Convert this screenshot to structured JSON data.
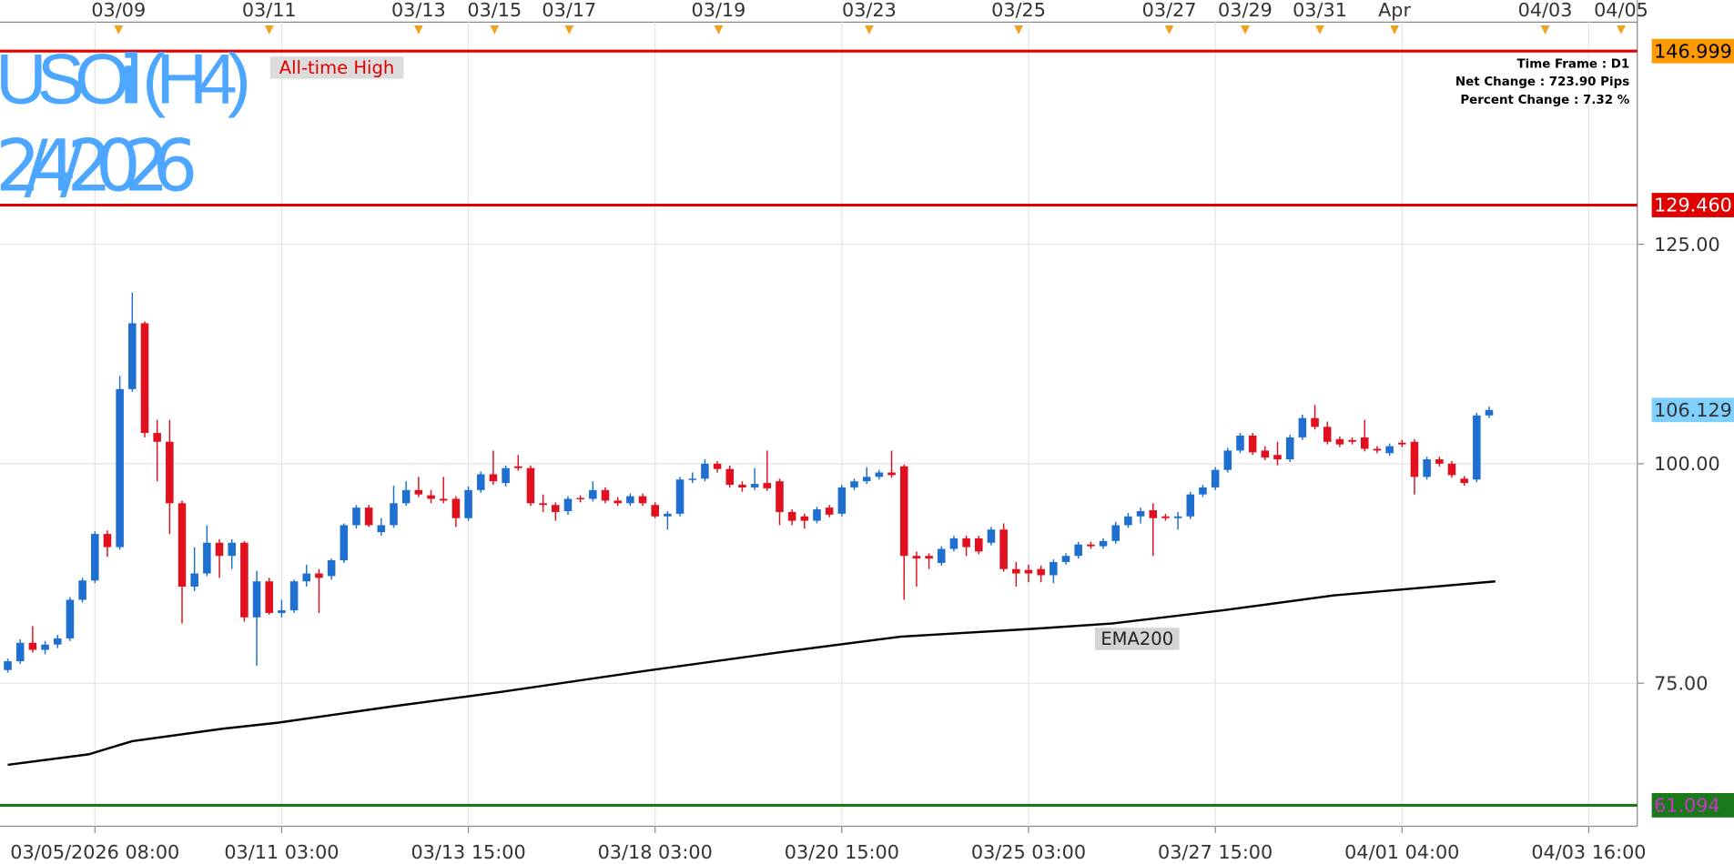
{
  "chart_data": {
    "type": "candlestick",
    "title": "USOil (H4)",
    "subtitle": "2/4/2026",
    "annotation": "All-time High",
    "info": [
      "Time Frame : D1",
      "Net Change : 723.90 Pips",
      "Percent Change : 7.32 %"
    ],
    "up_color": "#1e6fd0",
    "down_color": "#e0101e",
    "xlim": [
      -0.625,
      130.9
    ],
    "ylim": [
      58.7,
      148.4
    ],
    "yticks": [
      {
        "value": 75,
        "label": "75.00"
      },
      {
        "value": 100,
        "label": "100.00"
      },
      {
        "value": 125,
        "label": "125.00"
      }
    ],
    "grid": true,
    "xticks": [
      {
        "value": 7,
        "label": "03/05/2026 08:00"
      },
      {
        "value": 22,
        "label": "03/11 03:00"
      },
      {
        "value": 37,
        "label": "03/13 15:00"
      },
      {
        "value": 52,
        "label": "03/18 03:00"
      },
      {
        "value": 67,
        "label": "03/20 15:00"
      },
      {
        "value": 82,
        "label": "03/25 03:00"
      },
      {
        "value": 97,
        "label": "03/27 15:00"
      },
      {
        "value": 112,
        "label": "04/01 04:00"
      },
      {
        "value": 127,
        "label": "04/03 16:00"
      }
    ],
    "events": [
      {
        "value": 8.9,
        "label": "03/09"
      },
      {
        "value": 21,
        "label": "03/11"
      },
      {
        "value": 33,
        "label": "03/13"
      },
      {
        "value": 39.1,
        "label": "03/15"
      },
      {
        "value": 45.1,
        "label": "03/17"
      },
      {
        "value": 57.1,
        "label": "03/19"
      },
      {
        "value": 69.2,
        "label": "03/23"
      },
      {
        "value": 81.2,
        "label": "03/25"
      },
      {
        "value": 93.3,
        "label": "03/27"
      },
      {
        "value": 99.4,
        "label": "03/29"
      },
      {
        "value": 105.4,
        "label": "03/31"
      },
      {
        "value": 111.4,
        "label": "Apr"
      },
      {
        "value": 123.5,
        "label": "04/03"
      },
      {
        "value": 129.6,
        "label": "04/05"
      }
    ],
    "levels": [
      {
        "value": 146.999,
        "label": "146.999",
        "color": "#e00000",
        "label_bg": "#ff9900",
        "text_color": "#000000"
      },
      {
        "value": 129.46,
        "label": "129.460",
        "color": "#e00000",
        "label_bg": "#e00000",
        "text_color": "#ffffff"
      },
      {
        "value": 61.094,
        "label": "61.094",
        "color": "#1a7a1a",
        "label_bg": "#1a7a1a",
        "text_color": "#cc33cc"
      }
    ],
    "last_price": 106.129,
    "last_price_bg": "#7fd0ff",
    "ema": {
      "name": "EMA200",
      "color": "#000000",
      "x": [
        0,
        6.5,
        10,
        17.2,
        21.7,
        30.6,
        39.6,
        51.2,
        61.9,
        71.7,
        82.4,
        88.7,
        97.6,
        106.5,
        119.5
      ],
      "values": [
        65.7,
        66.9,
        68.4,
        69.8,
        70.5,
        72.3,
        74.0,
        76.4,
        78.5,
        80.3,
        81.2,
        81.8,
        83.3,
        85.0,
        86.6
      ]
    },
    "ohlc": [
      [
        76.5,
        77.8,
        76.2,
        77.5
      ],
      [
        77.5,
        80,
        77.2,
        79.6
      ],
      [
        79.6,
        81.5,
        78.5,
        78.8
      ],
      [
        78.8,
        79.8,
        78.3,
        79.4
      ],
      [
        79.4,
        80.5,
        79,
        80.1
      ],
      [
        80.1,
        84.8,
        79.8,
        84.5
      ],
      [
        84.5,
        87,
        84.2,
        86.7
      ],
      [
        86.7,
        92.3,
        86.4,
        92
      ],
      [
        92,
        92.4,
        89.4,
        90.5
      ],
      [
        90.5,
        110,
        90.2,
        108.5
      ],
      [
        108.5,
        119.5,
        108.2,
        116
      ],
      [
        116,
        116.2,
        103,
        103.5
      ],
      [
        103.5,
        105,
        98,
        102.5
      ],
      [
        102.5,
        105,
        92,
        95.5
      ],
      [
        95.5,
        95.8,
        81.8,
        86
      ],
      [
        86,
        90.5,
        85.5,
        87.5
      ],
      [
        87.5,
        93,
        87.2,
        91
      ],
      [
        91,
        91.4,
        87,
        89.5
      ],
      [
        89.5,
        91.4,
        88,
        91
      ],
      [
        91,
        91.2,
        82,
        82.5
      ],
      [
        82.5,
        87.8,
        77,
        86.6
      ],
      [
        86.6,
        87,
        82.8,
        83
      ],
      [
        83,
        84.5,
        82.5,
        83.3
      ],
      [
        83.3,
        86.8,
        83,
        86.6
      ],
      [
        86.6,
        88.5,
        86,
        87.5
      ],
      [
        87.5,
        88,
        83,
        87
      ],
      [
        87.2,
        89.2,
        86.8,
        89
      ],
      [
        89,
        93.2,
        88.7,
        93
      ],
      [
        93,
        95.3,
        92.6,
        95
      ],
      [
        95,
        95.3,
        92.8,
        93
      ],
      [
        92.2,
        93.8,
        91.8,
        93
      ],
      [
        93,
        97.5,
        92.7,
        95.5
      ],
      [
        95.5,
        98,
        95.2,
        97
      ],
      [
        97,
        98.5,
        96.2,
        96.5
      ],
      [
        96.4,
        97,
        95.5,
        96
      ],
      [
        96,
        98.5,
        95.5,
        95.8
      ],
      [
        96,
        96.3,
        92.8,
        93.8
      ],
      [
        93.8,
        97.4,
        93.5,
        97
      ],
      [
        97,
        99.1,
        96.7,
        98.8
      ],
      [
        98.8,
        101.5,
        97.6,
        98
      ],
      [
        97.8,
        99.8,
        97.4,
        99.5
      ],
      [
        99.7,
        101,
        99.2,
        99.5
      ],
      [
        99.5,
        99.8,
        95.2,
        95.5
      ],
      [
        95.5,
        96.5,
        94.5,
        95.3
      ],
      [
        95.3,
        95.6,
        93.5,
        94.5
      ],
      [
        94.6,
        96.3,
        94.2,
        96
      ],
      [
        96.1,
        96.4,
        95.6,
        96
      ],
      [
        96,
        98,
        95.7,
        97
      ],
      [
        97,
        97.3,
        95.5,
        95.8
      ],
      [
        95.8,
        96.2,
        95.2,
        95.5
      ],
      [
        95.5,
        96.6,
        95.2,
        96.3
      ],
      [
        96.3,
        96.6,
        95.2,
        95.5
      ],
      [
        95.3,
        95.6,
        93.8,
        94
      ],
      [
        94,
        94.6,
        92.5,
        94.3
      ],
      [
        94.3,
        98.5,
        94,
        98.2
      ],
      [
        98.2,
        99,
        97.8,
        98.3
      ],
      [
        98.3,
        100.5,
        98,
        100
      ],
      [
        100,
        100.3,
        99,
        99.4
      ],
      [
        99.4,
        99.8,
        97.3,
        97.6
      ],
      [
        97.6,
        98,
        96.8,
        97.3
      ],
      [
        97.3,
        99.5,
        97,
        97.7
      ],
      [
        97.8,
        101.5,
        96.9,
        97.2
      ],
      [
        98,
        98.3,
        93,
        94.5
      ],
      [
        94.5,
        94.8,
        93,
        93.5
      ],
      [
        94,
        94.3,
        92.6,
        93.5
      ],
      [
        93.5,
        95.1,
        93.2,
        94.8
      ],
      [
        95,
        95.3,
        93.9,
        94.2
      ],
      [
        94.3,
        97.6,
        94,
        97.3
      ],
      [
        97.3,
        98.3,
        97,
        98
      ],
      [
        98,
        99.6,
        97.7,
        98.5
      ],
      [
        98.5,
        99.3,
        98.2,
        99
      ],
      [
        99,
        101.5,
        98.4,
        98.7
      ],
      [
        99.7,
        99.9,
        84.5,
        89.5
      ],
      [
        89.5,
        90,
        86,
        89.2
      ],
      [
        89.5,
        89.8,
        88,
        89.2
      ],
      [
        88.7,
        90.6,
        88.4,
        90.3
      ],
      [
        90.3,
        91.8,
        90,
        91.5
      ],
      [
        91.5,
        91.8,
        89.5,
        90.5
      ],
      [
        91.5,
        91.8,
        89.7,
        90
      ],
      [
        91,
        92.8,
        90.7,
        92.5
      ],
      [
        92.5,
        93.2,
        87.7,
        88
      ],
      [
        88,
        88.8,
        86,
        87.5
      ],
      [
        87.9,
        88.5,
        86.5,
        87.5
      ],
      [
        88,
        88.4,
        86.5,
        87.3
      ],
      [
        87.3,
        89.1,
        86.4,
        88.8
      ],
      [
        88.8,
        89.8,
        88.5,
        89.5
      ],
      [
        89.5,
        91.1,
        89.2,
        90.8
      ],
      [
        90.8,
        91.1,
        90.3,
        90.6
      ],
      [
        90.6,
        91.5,
        90.3,
        91.2
      ],
      [
        91.2,
        93.4,
        90.9,
        93
      ],
      [
        93,
        94.4,
        92.7,
        94
      ],
      [
        94,
        95,
        93.2,
        94.6
      ],
      [
        94.7,
        95.5,
        89.5,
        93.8
      ],
      [
        94,
        94.3,
        93.5,
        93.8
      ],
      [
        93.8,
        94.5,
        92.5,
        94
      ],
      [
        94,
        96.8,
        93.7,
        96.5
      ],
      [
        96.5,
        97.6,
        96.2,
        97.3
      ],
      [
        97.3,
        99.6,
        97,
        99.3
      ],
      [
        99.3,
        101.8,
        99,
        101.5
      ],
      [
        101.5,
        103.5,
        101.2,
        103.2
      ],
      [
        103.2,
        103.5,
        101,
        101.3
      ],
      [
        101.5,
        102,
        100.4,
        100.7
      ],
      [
        101,
        102.5,
        99.8,
        100.5
      ],
      [
        100.5,
        103.3,
        100.2,
        103
      ],
      [
        103,
        105.6,
        102.7,
        105.2
      ],
      [
        105.2,
        106.7,
        103.9,
        104.2
      ],
      [
        104.2,
        104.8,
        102.2,
        102.5
      ],
      [
        102.8,
        103.1,
        101.9,
        102.2
      ],
      [
        102.7,
        103,
        102.2,
        102.5
      ],
      [
        103,
        105,
        101.4,
        101.7
      ],
      [
        101.7,
        102,
        101.2,
        101.5
      ],
      [
        101.2,
        102.3,
        100.9,
        102
      ],
      [
        102.4,
        102.7,
        101.9,
        102.2
      ],
      [
        102.5,
        102.8,
        96.5,
        98.5
      ],
      [
        98.5,
        100.8,
        98.2,
        100.5
      ],
      [
        100.5,
        100.8,
        99.7,
        100
      ],
      [
        100,
        100.3,
        98.4,
        98.7
      ],
      [
        98.3,
        98.6,
        97.5,
        97.8
      ],
      [
        98.2,
        105.8,
        97.9,
        105.5
      ],
      [
        105.5,
        106.5,
        105.2,
        106.129
      ]
    ]
  }
}
